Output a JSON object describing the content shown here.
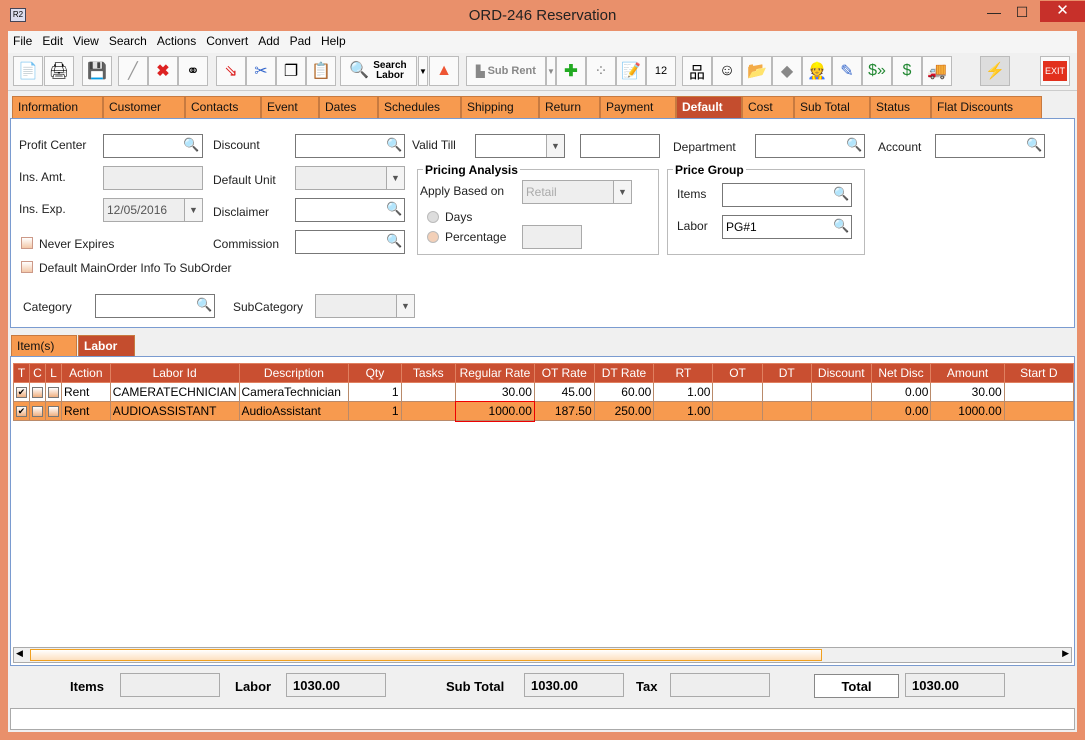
{
  "window": {
    "title": "ORD-246 Reservation",
    "icon": "R2",
    "minimize": "—",
    "maximize": "☐",
    "close": "✕"
  },
  "menu": [
    "File",
    "Edit",
    "View",
    "Search",
    "Actions",
    "Convert",
    "Add",
    "Pad",
    "Help"
  ],
  "toolbar": {
    "search_labor": "Search Labor",
    "sub_rent": "Sub Rent",
    "exit": "EXIT",
    "icons": [
      "new-icon",
      "print-icon",
      "save-icon",
      "edit-icon",
      "delete-icon",
      "binoculars-icon",
      "copy-order-icon",
      "cut-icon",
      "copy-icon",
      "paste-icon",
      "search-labor-icon",
      "dropdown-icon",
      "shapes-icon",
      "sub-rent-icon",
      "dropdown-icon",
      "add-remove-icon",
      "group-icon",
      "notepad-icon",
      "calendar-icon",
      "hierarchy-icon",
      "smiley-icon",
      "folder-clock-icon",
      "box-icon",
      "worker-icon",
      "form-edit-icon",
      "payment-forward-icon",
      "payment-note-icon",
      "truck-icon",
      "lightning-icon",
      "exit-icon"
    ]
  },
  "tabs": [
    "Information",
    "Customer",
    "Contacts",
    "Event",
    "Dates",
    "Schedules",
    "Shipping",
    "Return",
    "Payment",
    "Default",
    "Cost",
    "Sub Total",
    "Status",
    "Flat Discounts"
  ],
  "active_tab": "Default",
  "form": {
    "profit_center": {
      "label": "Profit Center",
      "value": ""
    },
    "discount": {
      "label": "Discount",
      "value": ""
    },
    "valid_till": {
      "label": "Valid Till",
      "value": "",
      "value2": ""
    },
    "department": {
      "label": "Department",
      "value": ""
    },
    "account": {
      "label": "Account",
      "value": ""
    },
    "ins_amt": {
      "label": "Ins. Amt.",
      "value": ""
    },
    "default_unit": {
      "label": "Default Unit",
      "value": ""
    },
    "ins_exp": {
      "label": "Ins. Exp.",
      "value": "12/05/2016"
    },
    "disclaimer": {
      "label": "Disclaimer",
      "value": ""
    },
    "never_expires": {
      "label": "Never Expires",
      "checked": false
    },
    "commission": {
      "label": "Commission",
      "value": ""
    },
    "default_main": {
      "label": "Default MainOrder Info To SubOrder",
      "checked": false
    },
    "category": {
      "label": "Category",
      "value": ""
    },
    "subcategory": {
      "label": "SubCategory",
      "value": ""
    },
    "pricing": {
      "title": "Pricing Analysis",
      "apply_label": "Apply Based on",
      "apply_value": "Retail",
      "days": "Days",
      "percentage": "Percentage",
      "percentage_value": ""
    },
    "price_group": {
      "title": "Price Group",
      "items_label": "Items",
      "items_value": "",
      "labor_label": "Labor",
      "labor_value": "PG#1"
    }
  },
  "subtabs": [
    "Item(s)",
    "Labor"
  ],
  "active_subtab": "Labor",
  "grid": {
    "columns": [
      "T",
      "C",
      "L",
      "Action",
      "Labor Id",
      "Description",
      "Qty",
      "Tasks",
      "Regular Rate",
      "OT Rate",
      "DT Rate",
      "RT",
      "OT",
      "DT",
      "Discount",
      "Net Disc",
      "Amount",
      "Start D"
    ],
    "rows": [
      {
        "t": true,
        "c": false,
        "l": false,
        "action": "Rent",
        "labor_id": "CAMERATECHNICIAN",
        "description": "CameraTechnician",
        "qty": "1",
        "tasks": "",
        "regular_rate": "30.00",
        "ot_rate": "45.00",
        "dt_rate": "60.00",
        "rt": "1.00",
        "ot": "",
        "dt": "",
        "discount": "",
        "net_disc": "0.00",
        "amount": "30.00",
        "start": ""
      },
      {
        "t": true,
        "c": false,
        "l": false,
        "action": "Rent",
        "labor_id": "AUDIOASSISTANT",
        "description": "AudioAssistant",
        "qty": "1",
        "tasks": "",
        "regular_rate": "1000.00",
        "ot_rate": "187.50",
        "dt_rate": "250.00",
        "rt": "1.00",
        "ot": "",
        "dt": "",
        "discount": "",
        "net_disc": "0.00",
        "amount": "1000.00",
        "start": ""
      }
    ]
  },
  "totals": {
    "items_label": "Items",
    "items": "",
    "labor_label": "Labor",
    "labor": "1030.00",
    "subtotal_label": "Sub Total",
    "subtotal": "1030.00",
    "tax_label": "Tax",
    "tax": "",
    "total_label": "Total",
    "total": "1030.00"
  },
  "colors": {
    "accent": "#f79a4f",
    "selected_tab": "#c44d2e",
    "header": "#c94f31",
    "window": "#e9906b"
  }
}
